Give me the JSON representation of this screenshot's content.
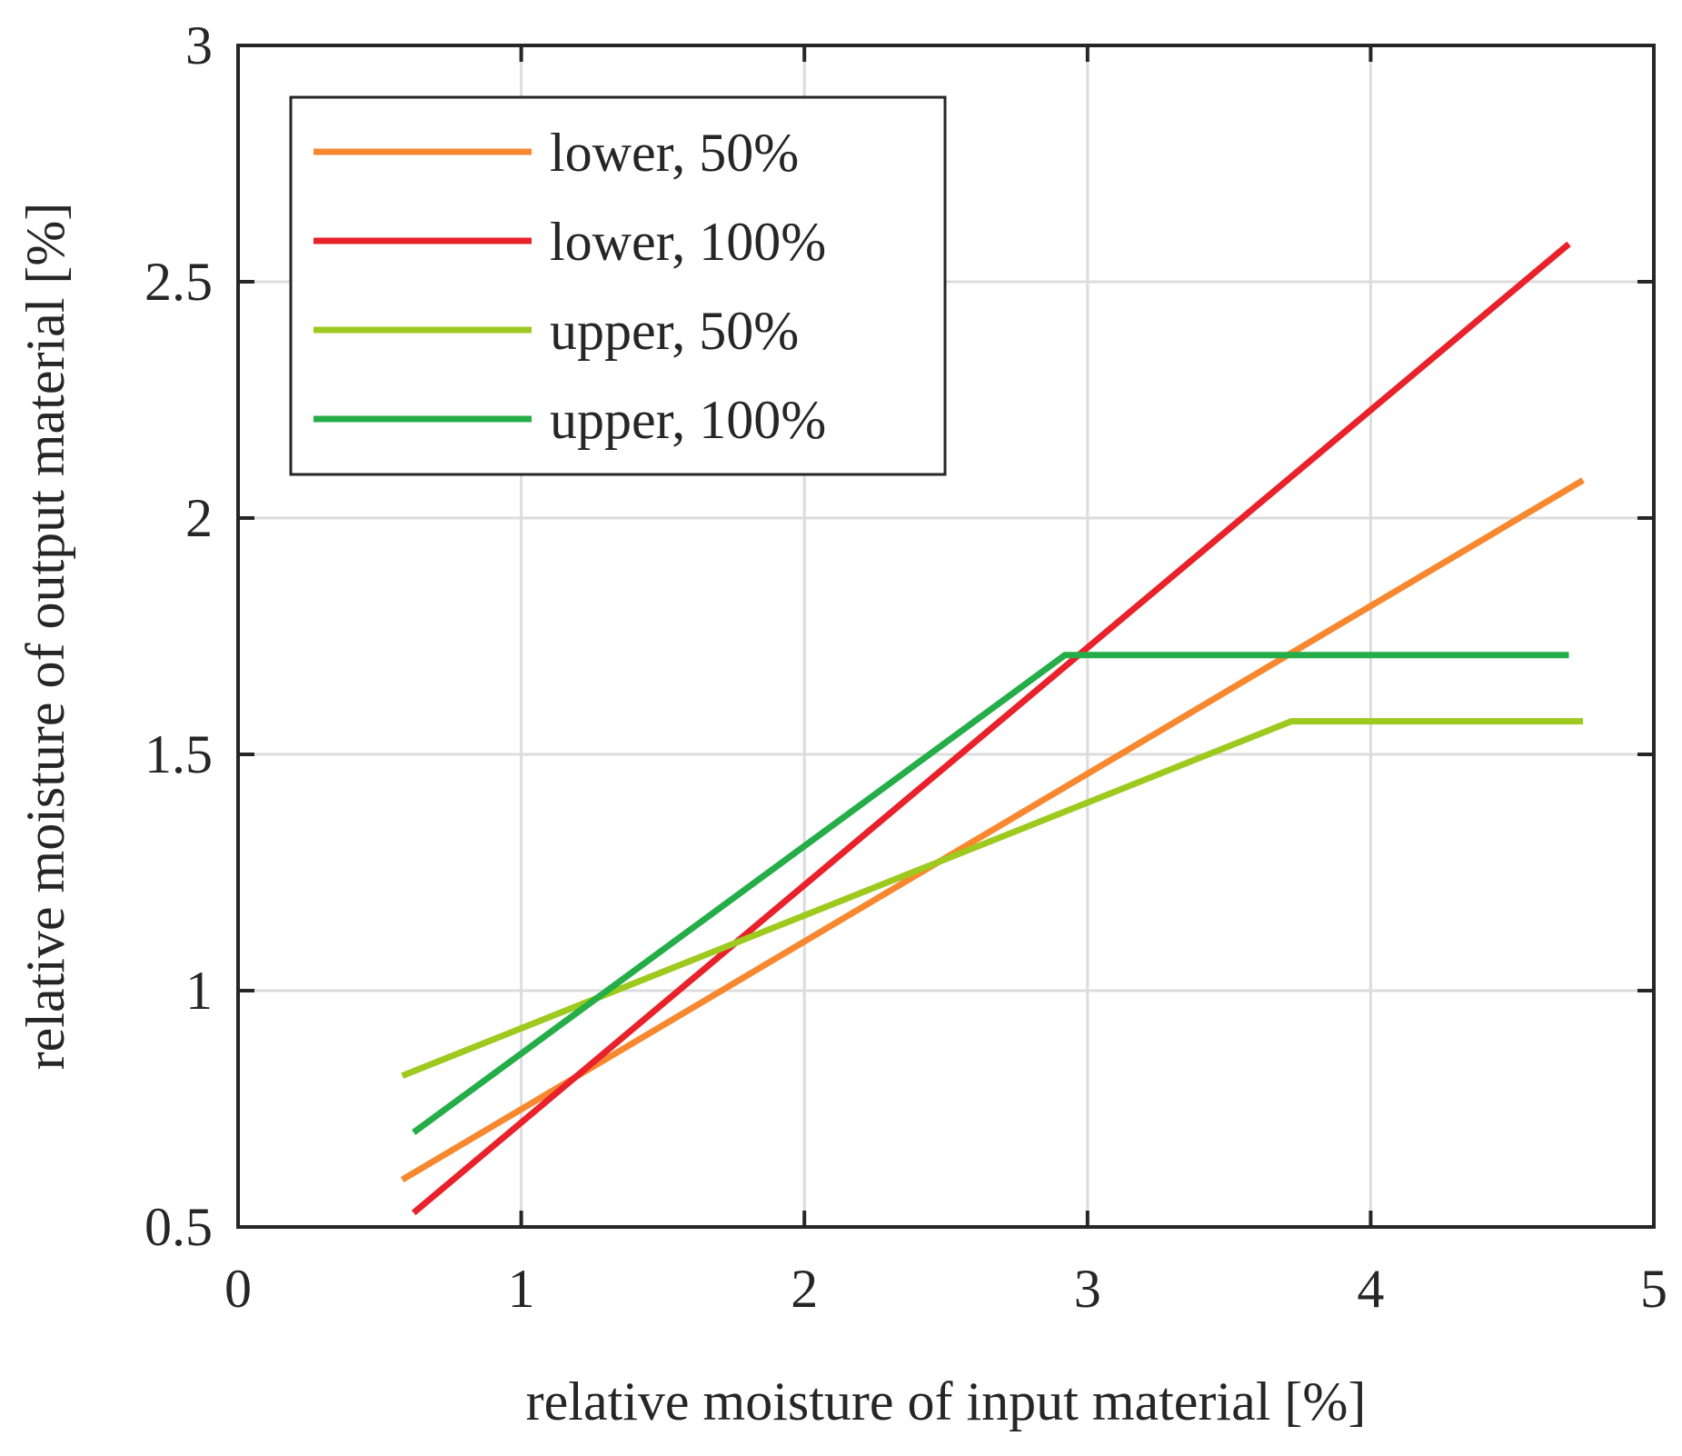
{
  "chart_data": {
    "type": "line",
    "title": "",
    "xlabel": "relative moisture of input material [%]",
    "ylabel": "relative moisture of output material [%]",
    "xlim": [
      0,
      5
    ],
    "ylim": [
      0.5,
      3
    ],
    "xticks": [
      0,
      1,
      2,
      3,
      4,
      5
    ],
    "xtick_labels": [
      "0",
      "1",
      "2",
      "3",
      "4",
      "5"
    ],
    "yticks": [
      0.5,
      1,
      1.5,
      2,
      2.5,
      3
    ],
    "ytick_labels": [
      "0.5",
      "1",
      "1.5",
      "2",
      "2.5",
      "3"
    ],
    "grid": true,
    "legend_position": "top-left",
    "series": [
      {
        "name": "lower, 50%",
        "color": "#f7882f",
        "x": [
          0.58,
          4.75
        ],
        "y": [
          0.6,
          2.08
        ]
      },
      {
        "name": "lower, 100%",
        "color": "#e8212a",
        "x": [
          0.62,
          4.7
        ],
        "y": [
          0.53,
          2.58
        ]
      },
      {
        "name": "upper, 50%",
        "color": "#9ec91e",
        "x": [
          0.58,
          3.72,
          4.75
        ],
        "y": [
          0.82,
          1.57,
          1.57
        ]
      },
      {
        "name": "upper, 100%",
        "color": "#24ad48",
        "x": [
          0.62,
          2.92,
          4.7
        ],
        "y": [
          0.7,
          1.71,
          1.71
        ]
      }
    ]
  }
}
